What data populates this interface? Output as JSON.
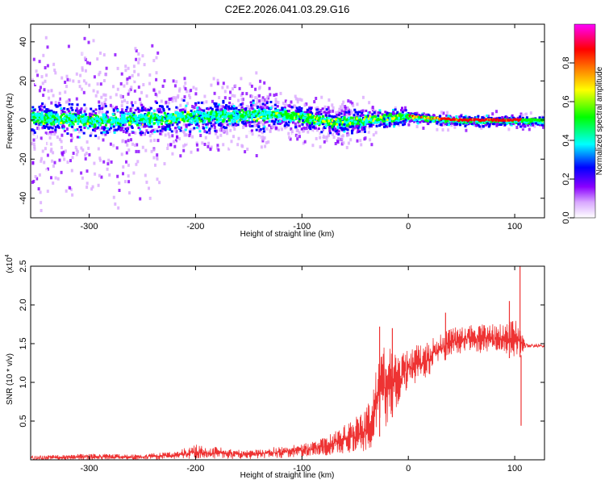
{
  "title": "C2E2.2026.041.03.29.G16",
  "chart_data": [
    {
      "type": "heatmap",
      "xlabel": "Height of straight line (km)",
      "ylabel": "Frequency (Hz)",
      "xlim": [
        -355,
        128
      ],
      "ylim": [
        -50,
        49
      ],
      "xticks": [
        -300,
        -200,
        -100,
        0,
        100
      ],
      "yticks": [
        -40,
        -20,
        0,
        20,
        40
      ],
      "colorbar": {
        "label": "Normalized spectral amplitude",
        "range": [
          0,
          1
        ],
        "ticks": [
          "0.0",
          "0.2",
          "0.4",
          "0.6",
          "0.8"
        ],
        "colors": [
          "#ffffff",
          "#d9a8ff",
          "#8a00ff",
          "#0000ff",
          "#00ffff",
          "#00ff00",
          "#ffff00",
          "#ff8800",
          "#ff0000",
          "#ff00ff"
        ]
      },
      "ridge": [
        {
          "x": -350,
          "y": 2
        },
        {
          "x": -300,
          "y": 0
        },
        {
          "x": -250,
          "y": 1
        },
        {
          "x": -200,
          "y": 2
        },
        {
          "x": -150,
          "y": 3
        },
        {
          "x": -120,
          "y": 3
        },
        {
          "x": -90,
          "y": 1
        },
        {
          "x": -70,
          "y": -1
        },
        {
          "x": -50,
          "y": 0
        },
        {
          "x": -30,
          "y": 1
        },
        {
          "x": -10,
          "y": 2
        },
        {
          "x": 0,
          "y": 2
        },
        {
          "x": 20,
          "y": 1
        },
        {
          "x": 50,
          "y": 0
        },
        {
          "x": 80,
          "y": 0
        },
        {
          "x": 100,
          "y": 0
        },
        {
          "x": 128,
          "y": 0
        }
      ]
    },
    {
      "type": "line",
      "xlabel": "Height of straight line (km)",
      "ylabel": "SNR (10 * v/v)",
      "multiplier": "(x10",
      "multiplier_exp": "4",
      "xlim": [
        -355,
        128
      ],
      "ylim": [
        0,
        2.5
      ],
      "xticks": [
        -300,
        -200,
        -100,
        0,
        100
      ],
      "yticks": [
        "0.5",
        "1.0",
        "1.5",
        "2.0",
        "2.5"
      ],
      "color": "#ee3333",
      "envelope": [
        {
          "x": -355,
          "lo": 0.0,
          "hi": 0.05
        },
        {
          "x": -300,
          "lo": 0.0,
          "hi": 0.08
        },
        {
          "x": -250,
          "lo": 0.0,
          "hi": 0.07
        },
        {
          "x": -220,
          "lo": 0.0,
          "hi": 0.12
        },
        {
          "x": -200,
          "lo": 0.0,
          "hi": 0.2
        },
        {
          "x": -150,
          "lo": 0.01,
          "hi": 0.12
        },
        {
          "x": -120,
          "lo": 0.02,
          "hi": 0.18
        },
        {
          "x": -100,
          "lo": 0.04,
          "hi": 0.2
        },
        {
          "x": -80,
          "lo": 0.05,
          "hi": 0.28
        },
        {
          "x": -60,
          "lo": 0.08,
          "hi": 0.45
        },
        {
          "x": -45,
          "lo": 0.1,
          "hi": 0.6
        },
        {
          "x": -35,
          "lo": 0.12,
          "hi": 0.8
        },
        {
          "x": -27,
          "lo": 0.3,
          "hi": 1.45
        },
        {
          "x": -20,
          "lo": 0.4,
          "hi": 1.5
        },
        {
          "x": -10,
          "lo": 0.7,
          "hi": 1.35
        },
        {
          "x": 0,
          "lo": 0.9,
          "hi": 1.45
        },
        {
          "x": 20,
          "lo": 1.1,
          "hi": 1.55
        },
        {
          "x": 40,
          "lo": 1.35,
          "hi": 1.7
        },
        {
          "x": 60,
          "lo": 1.4,
          "hi": 1.75
        },
        {
          "x": 80,
          "lo": 1.35,
          "hi": 1.75
        },
        {
          "x": 100,
          "lo": 1.3,
          "hi": 1.8
        },
        {
          "x": 104,
          "lo": 1.3,
          "hi": 1.8
        },
        {
          "x": 110,
          "lo": 1.45,
          "hi": 1.5
        },
        {
          "x": 128,
          "lo": 1.45,
          "hi": 1.49
        }
      ],
      "spikes": [
        {
          "x": -27,
          "y": 1.72
        },
        {
          "x": -15,
          "y": 1.7
        },
        {
          "x": 35,
          "y": 1.9
        },
        {
          "x": 95,
          "y": 2.05
        },
        {
          "x": 105,
          "y": 2.5
        },
        {
          "x": 106,
          "y": 0.44
        }
      ]
    }
  ]
}
